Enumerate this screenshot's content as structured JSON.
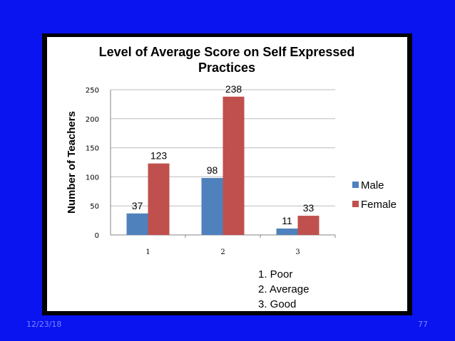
{
  "slide": {
    "date": "12/23/18",
    "page_number": "77",
    "background_color": "#0a14f0"
  },
  "chart_data": {
    "type": "bar",
    "title_lines": [
      "Level of Average Score on Self Expressed",
      "Practices"
    ],
    "xlabel": "",
    "ylabel": "Number of Teachers",
    "categories": [
      "1",
      "2",
      "3"
    ],
    "ylim": [
      0,
      250
    ],
    "yticks": [
      0,
      50,
      100,
      150,
      200,
      250
    ],
    "grid": true,
    "legend_position": "right",
    "series": [
      {
        "name": "Male",
        "color": "#4f81bd",
        "values": [
          37,
          98,
          11
        ]
      },
      {
        "name": "Female",
        "color": "#c0504d",
        "values": [
          123,
          238,
          33
        ]
      }
    ],
    "annotation_lines": [
      "1. Poor",
      "2. Average",
      "3. Good"
    ]
  }
}
